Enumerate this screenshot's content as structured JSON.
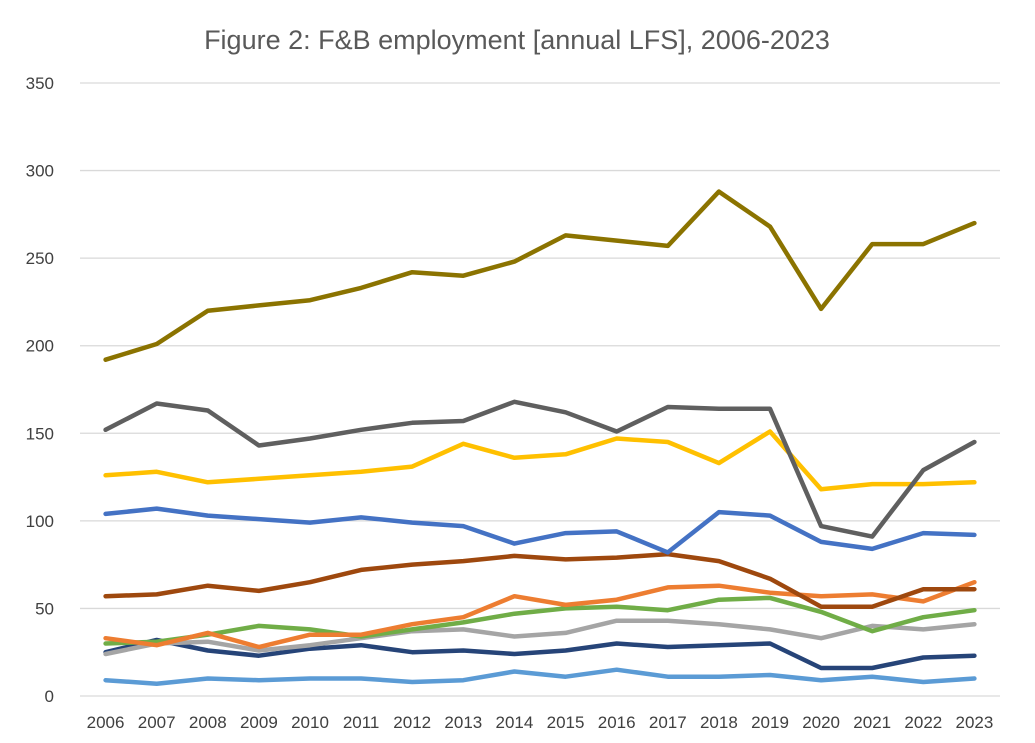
{
  "chart_data": {
    "type": "line",
    "title": "Figure 2: F&B employment [annual LFS], 2006-2023",
    "xlabel": "",
    "ylabel": "",
    "ylim": [
      0,
      350
    ],
    "yticks": [
      0,
      50,
      100,
      150,
      200,
      250,
      300,
      350
    ],
    "grid": true,
    "legend": "none",
    "categories": [
      "2006",
      "2007",
      "2008",
      "2009",
      "2010",
      "2011",
      "2012",
      "2013",
      "2014",
      "2015",
      "2016",
      "2017",
      "2018",
      "2019",
      "2020",
      "2021",
      "2022",
      "2023"
    ],
    "series": [
      {
        "color": "#8b7300",
        "values": [
          192,
          201,
          220,
          223,
          226,
          233,
          242,
          240,
          248,
          263,
          260,
          257,
          288,
          268,
          221,
          258,
          258,
          270
        ]
      },
      {
        "color": "#5f5f5f",
        "values": [
          152,
          167,
          163,
          143,
          147,
          152,
          156,
          157,
          168,
          162,
          151,
          165,
          164,
          164,
          97,
          91,
          129,
          145
        ]
      },
      {
        "color": "#ffc000",
        "values": [
          126,
          128,
          122,
          124,
          126,
          128,
          131,
          144,
          136,
          138,
          147,
          145,
          133,
          151,
          118,
          121,
          121,
          122
        ]
      },
      {
        "color": "#4472c4",
        "values": [
          104,
          107,
          103,
          101,
          99,
          102,
          99,
          97,
          87,
          93,
          94,
          82,
          105,
          103,
          88,
          84,
          93,
          92
        ]
      },
      {
        "color": "#9e480e",
        "values": [
          57,
          58,
          63,
          60,
          65,
          72,
          75,
          77,
          80,
          78,
          79,
          81,
          77,
          67,
          51,
          51,
          61,
          61
        ]
      },
      {
        "color": "#ed7d31",
        "values": [
          33,
          29,
          36,
          28,
          35,
          35,
          41,
          45,
          57,
          52,
          55,
          62,
          63,
          59,
          57,
          58,
          54,
          65
        ]
      },
      {
        "color": "#70ad47",
        "values": [
          30,
          31,
          35,
          40,
          38,
          34,
          38,
          42,
          47,
          50,
          51,
          49,
          55,
          56,
          48,
          37,
          45,
          49
        ]
      },
      {
        "color": "#a5a5a5",
        "values": [
          24,
          30,
          31,
          26,
          29,
          33,
          37,
          38,
          34,
          36,
          43,
          43,
          41,
          38,
          33,
          40,
          38,
          41
        ]
      },
      {
        "color": "#264478",
        "values": [
          25,
          32,
          26,
          23,
          27,
          29,
          25,
          26,
          24,
          26,
          30,
          28,
          29,
          30,
          16,
          16,
          22,
          23
        ]
      },
      {
        "color": "#5b9bd5",
        "values": [
          9,
          7,
          10,
          9,
          10,
          10,
          8,
          9,
          14,
          11,
          15,
          11,
          11,
          12,
          9,
          11,
          8,
          10
        ]
      }
    ]
  }
}
